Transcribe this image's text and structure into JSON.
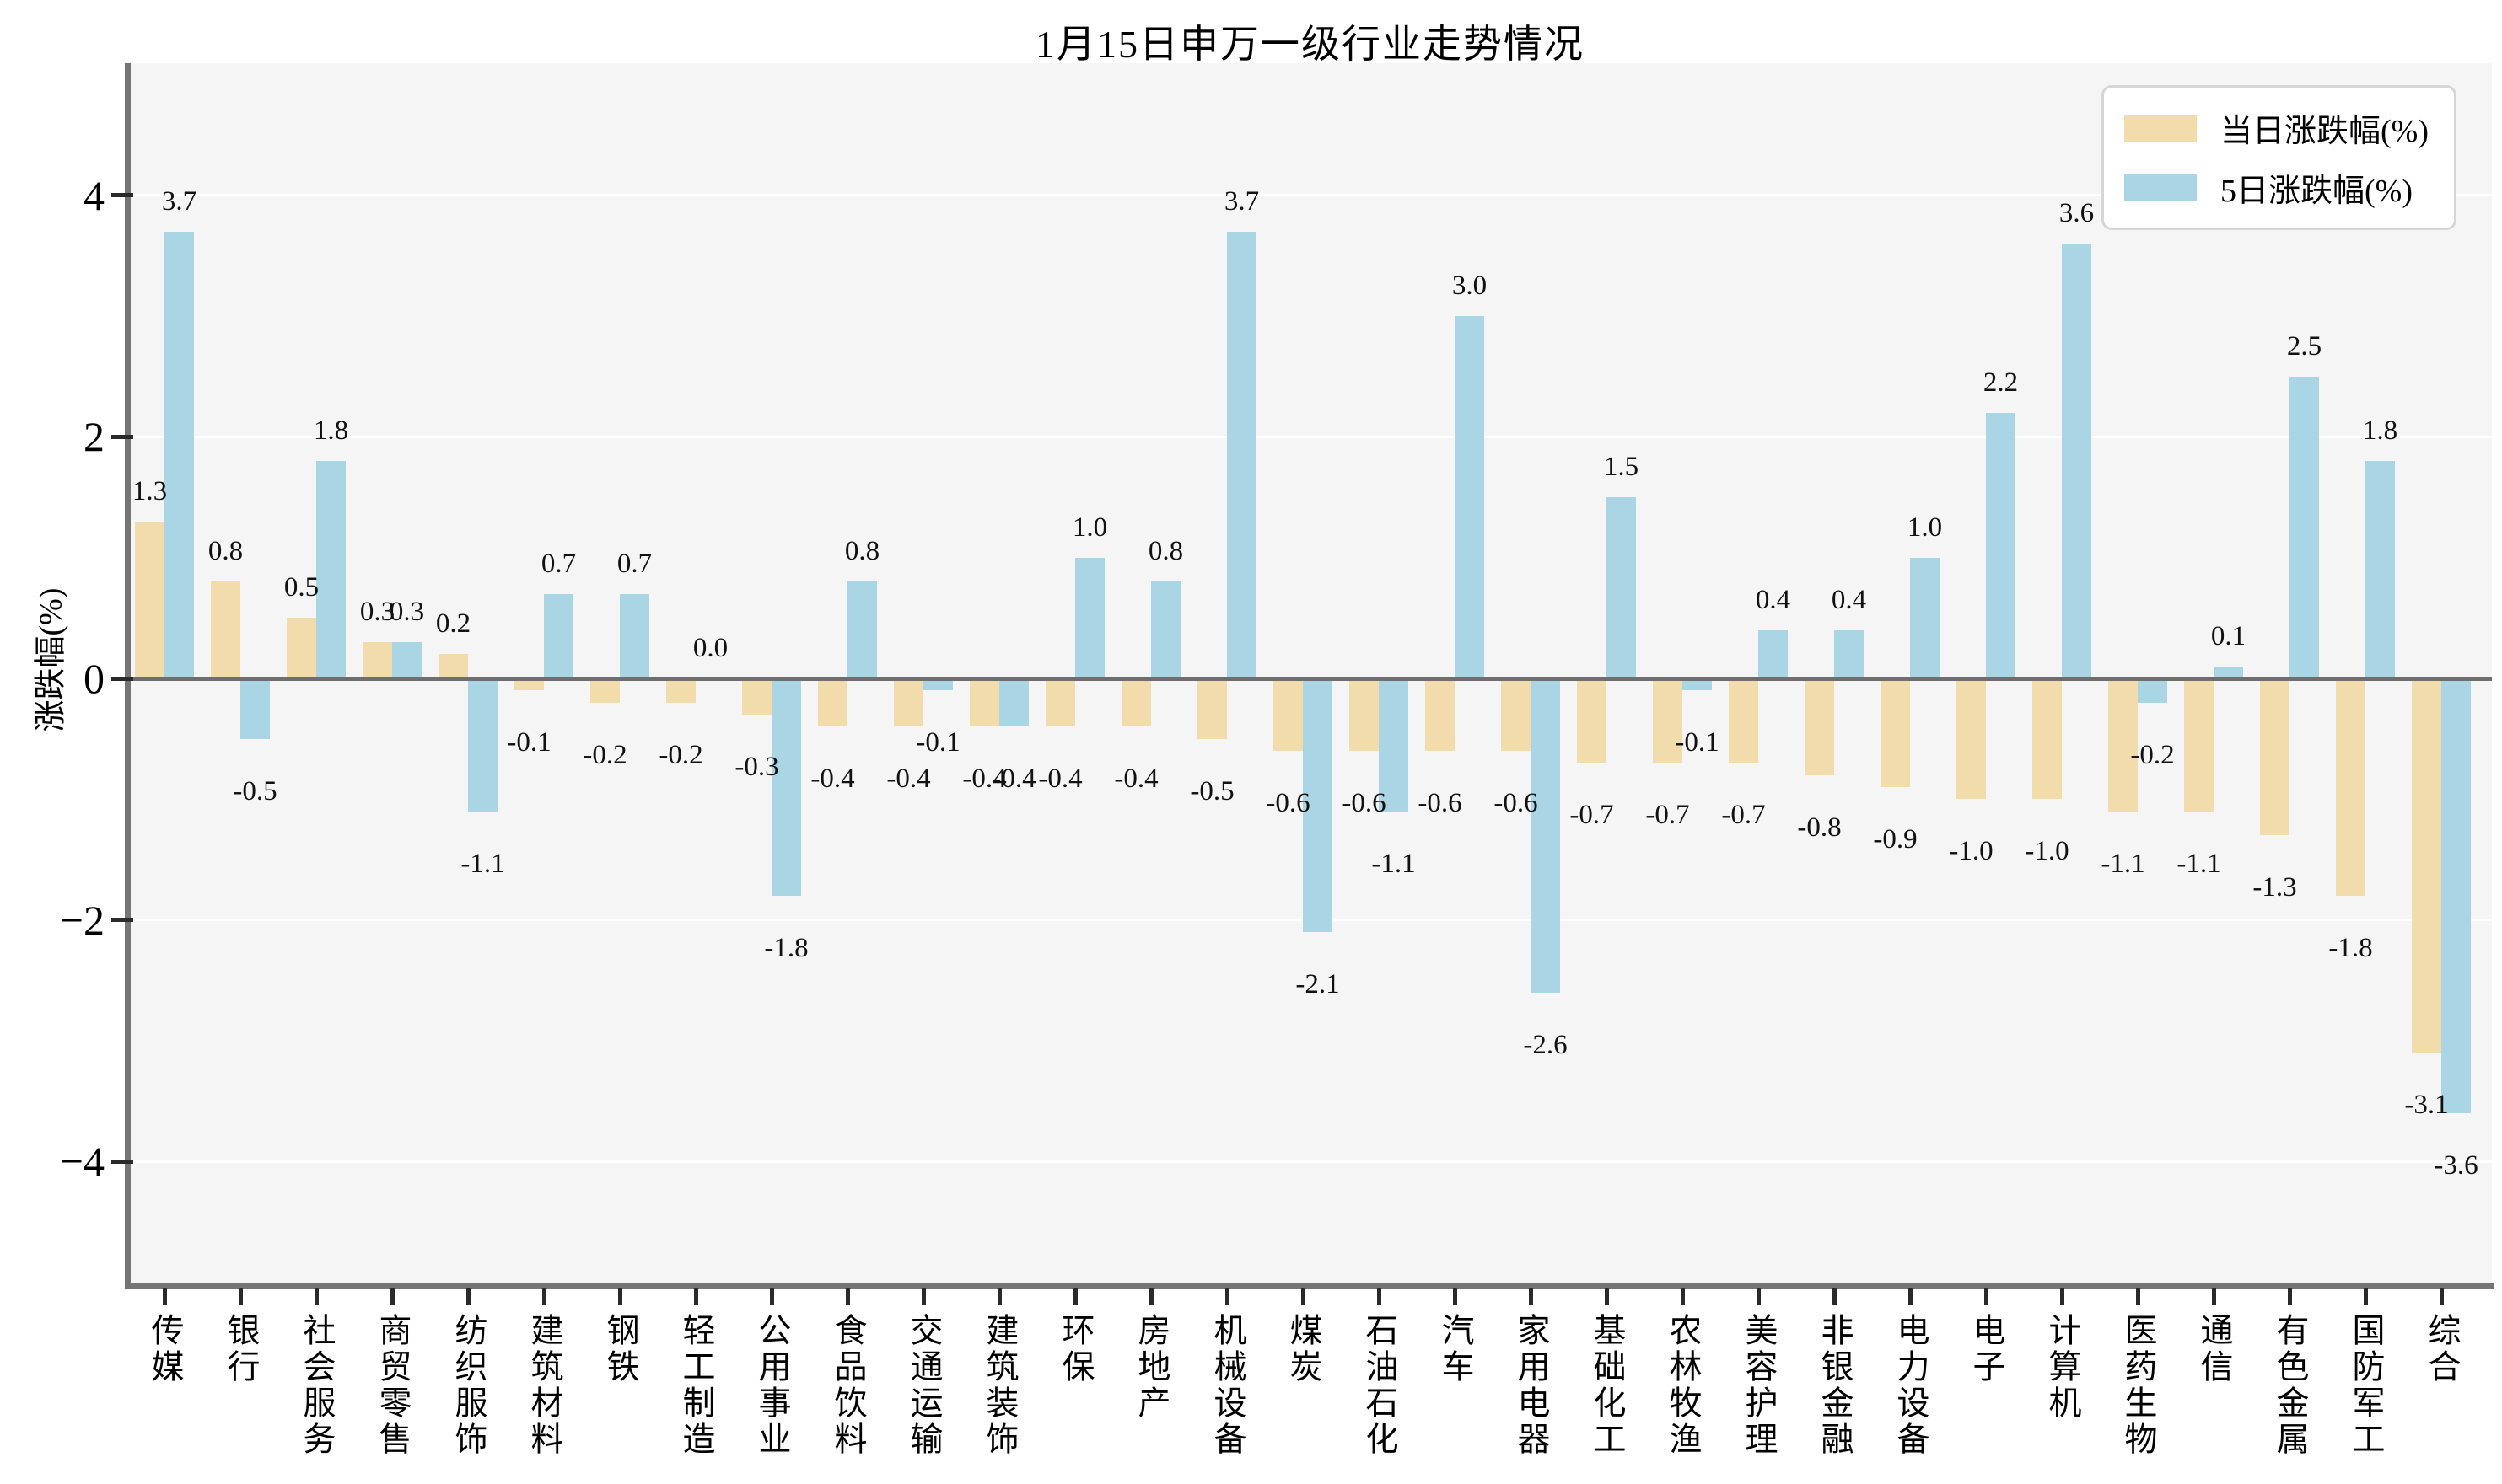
{
  "title": "1月15日申万一级行业走势情况",
  "y_axis": {
    "label": "涨跌幅(%)",
    "tick_labels": [
      "4",
      "2",
      "0",
      "−2",
      "−4"
    ],
    "tick_values": [
      4,
      2,
      0,
      -2,
      -4
    ]
  },
  "legend": [
    {
      "label": "当日涨跌幅(%)",
      "color": "#f2dcab"
    },
    {
      "label": "5日涨跌幅(%)",
      "color": "#a9d5e5"
    }
  ],
  "colors": {
    "daily_bar": "#f2dcab",
    "fiveday_bar": "#a9d5e5",
    "plot_background": "#f5f5f6",
    "gridline": "#ffffff",
    "zero_line": "#6e6e6e",
    "spine": "#757575"
  },
  "chart_data": {
    "type": "bar",
    "title": "1月15日申万一级行业走势情况",
    "xlabel": "",
    "ylabel": "涨跌幅(%)",
    "ylim": [
      -5.1,
      5.1
    ],
    "yticks": [
      -4,
      -2,
      0,
      2,
      4
    ],
    "grid": true,
    "legend_position": "upper right",
    "categories": [
      "传媒",
      "银行",
      "社会服务",
      "商贸零售",
      "纺织服饰",
      "建筑材料",
      "钢铁",
      "轻工制造",
      "公用事业",
      "食品饮料",
      "交通运输",
      "建筑装饰",
      "环保",
      "房地产",
      "机械设备",
      "煤炭",
      "石油石化",
      "汽车",
      "家用电器",
      "基础化工",
      "农林牧渔",
      "美容护理",
      "非银金融",
      "电力设备",
      "电子",
      "计算机",
      "医药生物",
      "通信",
      "有色金属",
      "国防军工",
      "综合"
    ],
    "series": [
      {
        "name": "当日涨跌幅(%)",
        "color": "#f2dcab",
        "values": [
          1.3,
          0.8,
          0.5,
          0.3,
          0.2,
          -0.1,
          -0.2,
          -0.2,
          -0.3,
          -0.4,
          -0.4,
          -0.4,
          -0.4,
          -0.4,
          -0.5,
          -0.6,
          -0.6,
          -0.6,
          -0.6,
          -0.7,
          -0.7,
          -0.7,
          -0.8,
          -0.9,
          -1.0,
          -1.0,
          -1.1,
          -1.1,
          -1.3,
          -1.8,
          -3.1
        ]
      },
      {
        "name": "5日涨跌幅(%)",
        "color": "#a9d5e5",
        "values": [
          3.7,
          -0.5,
          1.8,
          0.3,
          -1.1,
          0.7,
          0.7,
          0.0,
          -1.8,
          0.8,
          -0.1,
          -0.4,
          1.0,
          0.8,
          3.7,
          -2.1,
          -1.1,
          3.0,
          -2.6,
          1.5,
          -0.1,
          0.4,
          0.4,
          1.0,
          2.2,
          3.6,
          -0.2,
          0.1,
          2.5,
          1.8,
          -3.6
        ]
      }
    ]
  }
}
